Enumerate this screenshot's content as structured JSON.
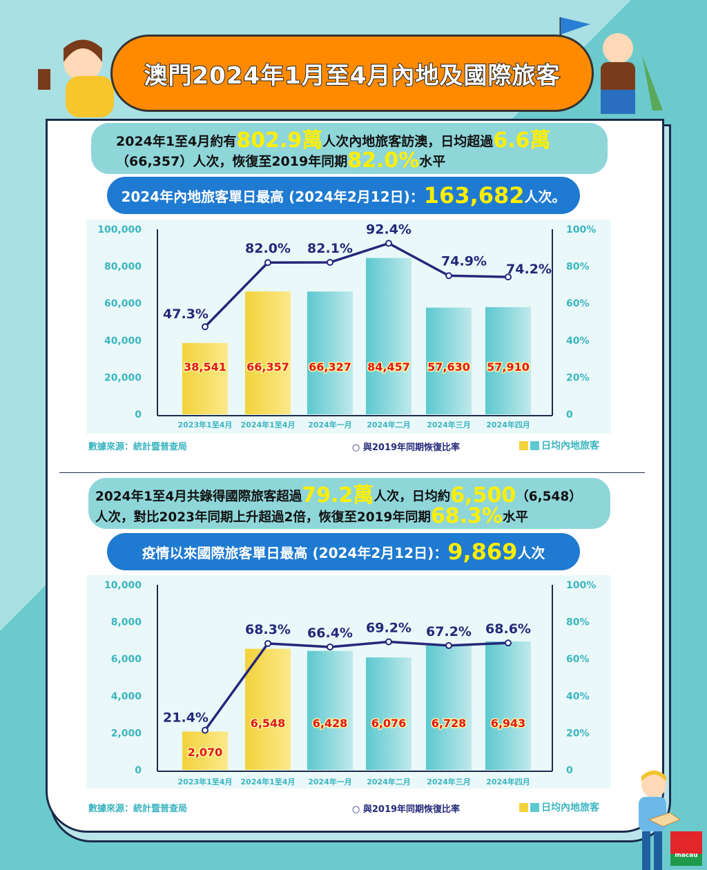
{
  "title": "澳門2024年1月至4月內地及國際旅客",
  "mainland": {
    "info_parts": [
      "2024年1至4月約有",
      "802.9萬",
      "人次內地旅客訪澳，日均超過",
      "6.6萬"
    ],
    "info_parts2": [
      "（66,357）人次，恢復至2019年同期",
      "82.0%",
      "水平"
    ],
    "peak_prefix": "2024年內地旅客單日最高 (2024年2月12日)：",
    "peak_value": "163,682",
    "peak_suffix": "人次。"
  },
  "international": {
    "info_parts": [
      "2024年1至4月共錄得國際旅客超過",
      "79.2萬",
      "人次，日均約",
      "6,500",
      "（6,548）"
    ],
    "info_parts2": [
      "人次，對比2023年同期上升超過2倍，恢復至2019年同期",
      "68.3%",
      "水平"
    ],
    "peak_prefix": "疫情以來國際旅客單日最高 (2024年2月12日)：",
    "peak_value": "9,869",
    "peak_suffix": "人次"
  },
  "footer": {
    "source": "數據來源：統計暨普查局",
    "legend_line": "與2019年同期恢復比率",
    "legend_bar": "日均內地旅客"
  },
  "colors": {
    "yellow_bar": "#f3d23c",
    "cyan_bar": "#5cc8cf",
    "line": "#23287a",
    "value_label": "#e0161e",
    "highlight": "#ffef00"
  },
  "chart_data": [
    {
      "type": "bar+line",
      "categories": [
        "2023年1至4月",
        "2024年1至4月",
        "2024年一月",
        "2024年二月",
        "2024年三月",
        "2024年四月"
      ],
      "bar_values": [
        38541,
        66357,
        66327,
        84457,
        57630,
        57910
      ],
      "bar_labels": [
        "38,541",
        "66,357",
        "66,327",
        "84,457",
        "57,630",
        "57,910"
      ],
      "line_values": [
        47.3,
        82.0,
        82.1,
        92.4,
        74.9,
        74.2
      ],
      "line_labels": [
        "47.3%",
        "82.0%",
        "82.1%",
        "92.4%",
        "74.9%",
        "74.2%"
      ],
      "ylim": [
        0,
        100000
      ],
      "y2lim": [
        0,
        100
      ],
      "yticks": [
        "0",
        "20,000",
        "40,000",
        "60,000",
        "80,000",
        "100,000"
      ],
      "y2ticks": [
        "0",
        "20%",
        "40%",
        "60%",
        "80%",
        "100%"
      ],
      "bar_colors": [
        "yellow",
        "yellow",
        "cyan",
        "cyan",
        "cyan",
        "cyan"
      ]
    },
    {
      "type": "bar+line",
      "categories": [
        "2023年1至4月",
        "2024年1至4月",
        "2024年一月",
        "2024年二月",
        "2024年三月",
        "2024年四月"
      ],
      "bar_values": [
        2070,
        6548,
        6428,
        6076,
        6728,
        6943
      ],
      "bar_labels": [
        "2,070",
        "6,548",
        "6,428",
        "6,076",
        "6,728",
        "6,943"
      ],
      "line_values": [
        21.4,
        68.3,
        66.4,
        69.2,
        67.2,
        68.6
      ],
      "line_labels": [
        "21.4%",
        "68.3%",
        "66.4%",
        "69.2%",
        "67.2%",
        "68.6%"
      ],
      "ylim": [
        0,
        10000
      ],
      "y2lim": [
        0,
        100
      ],
      "yticks": [
        "0",
        "2,000",
        "4,000",
        "6,000",
        "8,000",
        "10,000"
      ],
      "y2ticks": [
        "0",
        "20%",
        "40%",
        "60%",
        "80%",
        "100%"
      ],
      "bar_colors": [
        "yellow",
        "yellow",
        "cyan",
        "cyan",
        "cyan",
        "cyan"
      ]
    }
  ]
}
